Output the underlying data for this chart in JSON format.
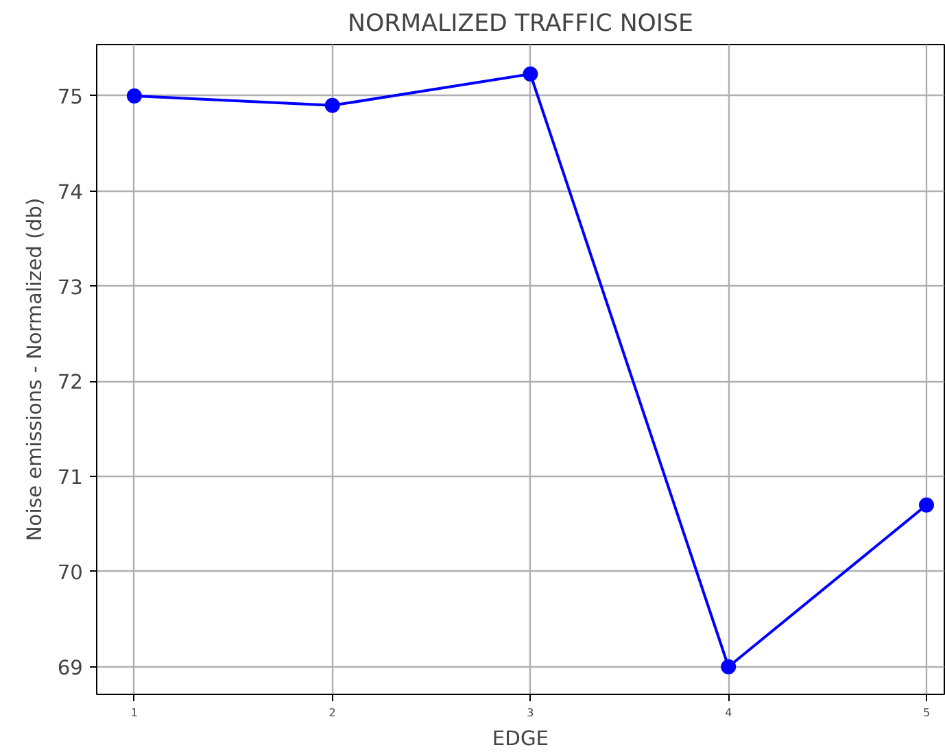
{
  "chart_data": {
    "type": "line",
    "title": "NORMALIZED TRAFFIC NOISE",
    "xlabel": "EDGE",
    "ylabel": "Noise emissions - Normalized (db)",
    "x": [
      1,
      2,
      3,
      4,
      5
    ],
    "series": [
      {
        "color": "#0000ff",
        "values": [
          75.0,
          74.9,
          75.23,
          69.0,
          70.7
        ]
      }
    ],
    "xlim": [
      0.81,
      5.09
    ],
    "ylim": [
      68.71,
      75.54
    ],
    "xticks": [
      1,
      2,
      3,
      4,
      5
    ],
    "yticks": [
      69,
      70,
      71,
      72,
      73,
      74,
      75
    ],
    "grid": true,
    "marker": "circle",
    "line_style": "solid"
  }
}
